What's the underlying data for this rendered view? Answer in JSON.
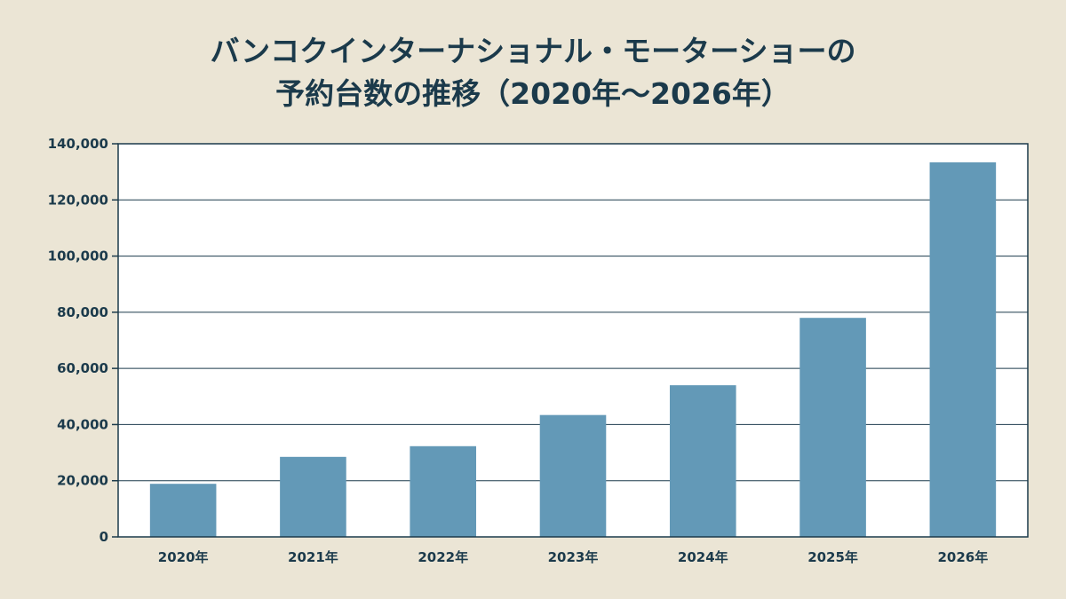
{
  "title_lines": [
    "バンコクインターナショナル・モーターショーの",
    "予約台数の推移（2020年〜2026年）"
  ],
  "colors": {
    "background": "#ebe5d5",
    "plot_background": "#ffffff",
    "bar": "#6399b7",
    "axis": "#1b3a4b",
    "text": "#1b3a4b"
  },
  "chart_data": {
    "type": "bar",
    "title": "バンコクインターナショナル・モーターショーの予約台数の推移（2020年〜2026年）",
    "categories": [
      "2020年",
      "2021年",
      "2022年",
      "2023年",
      "2024年",
      "2025年",
      "2026年"
    ],
    "values": [
      18900,
      28500,
      32300,
      43400,
      54000,
      78000,
      133400
    ],
    "ylim": [
      0,
      140000
    ],
    "yticks": [
      0,
      20000,
      40000,
      60000,
      80000,
      100000,
      120000,
      140000
    ],
    "ytick_labels": [
      "0",
      "20,000",
      "40,000",
      "60,000",
      "80,000",
      "100,000",
      "120,000",
      "140,000"
    ],
    "xlabel": "",
    "ylabel": "",
    "grid": "horizontal",
    "legend": "none"
  }
}
